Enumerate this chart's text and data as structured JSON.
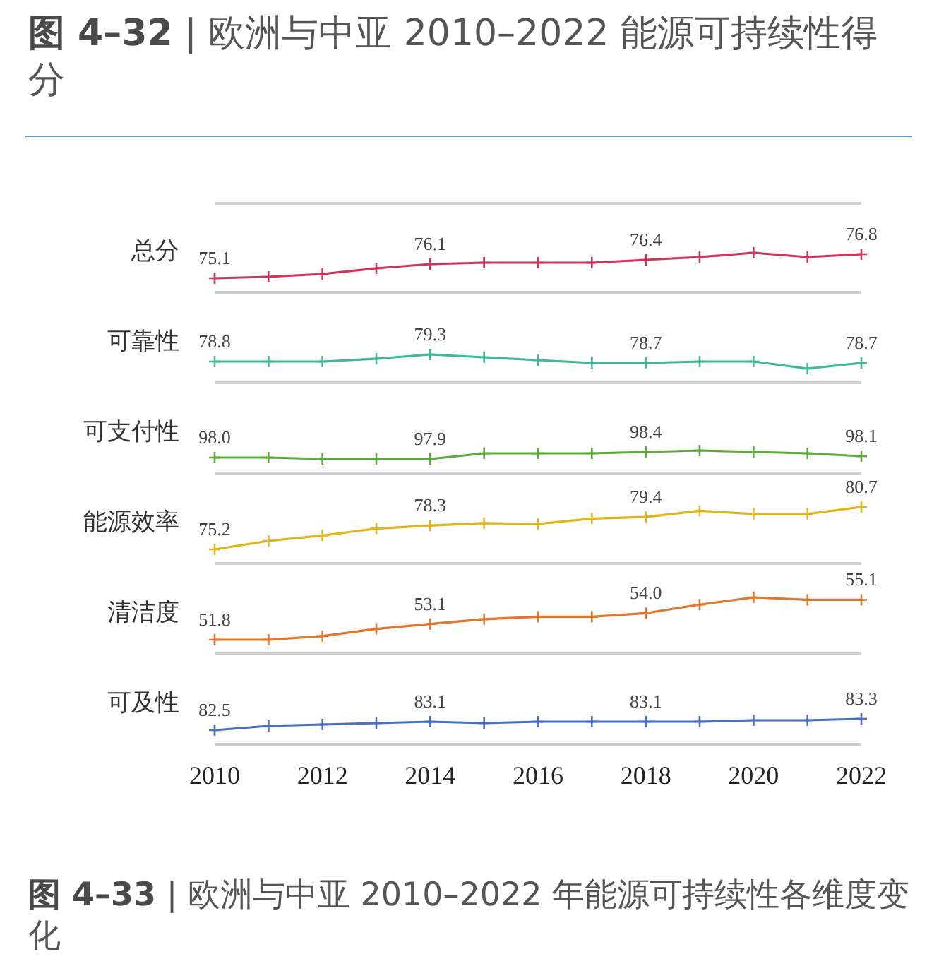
{
  "chart_data": [
    {
      "type": "line",
      "title": "**图 4–32** | 欧洲与中亚 2010–2022 能源可持续性得分",
      "ylabel": "总分",
      "x": [
        2010,
        2011,
        2012,
        2013,
        2014,
        2015,
        2016,
        2017,
        2018,
        2019,
        2020,
        2021,
        2022
      ],
      "values": [
        75.1,
        75.2,
        75.4,
        75.8,
        76.1,
        76.2,
        76.2,
        76.2,
        76.4,
        76.6,
        76.9,
        76.6,
        76.8
      ],
      "color": "#d0345a",
      "value_labels": [
        "75.1",
        null,
        null,
        null,
        "76.1",
        null,
        null,
        null,
        "76.4",
        null,
        null,
        null,
        "76.8"
      ],
      "xlim": [
        2010,
        2022
      ],
      "tick_labels": false,
      "marker": "cross"
    },
    {
      "type": "line",
      "ylabel": "可靠性",
      "x": [
        2010,
        2011,
        2012,
        2013,
        2014,
        2015,
        2016,
        2017,
        2018,
        2019,
        2020,
        2021,
        2022
      ],
      "values": [
        78.8,
        78.8,
        78.8,
        79.0,
        79.3,
        79.1,
        78.9,
        78.7,
        78.7,
        78.8,
        78.8,
        78.3,
        78.7
      ],
      "color": "#3fb89a",
      "value_labels": [
        "78.8",
        null,
        null,
        null,
        "79.3",
        null,
        null,
        null,
        "78.7",
        null,
        null,
        null,
        "78.7"
      ],
      "xlim": [
        2010,
        2022
      ],
      "tick_labels": false,
      "marker": "cross"
    },
    {
      "type": "line",
      "ylabel": "可支付性",
      "x": [
        2010,
        2011,
        2012,
        2013,
        2014,
        2015,
        2016,
        2017,
        2018,
        2019,
        2020,
        2021,
        2022
      ],
      "values": [
        98.0,
        98.0,
        97.9,
        97.9,
        97.9,
        98.3,
        98.3,
        98.3,
        98.4,
        98.5,
        98.4,
        98.3,
        98.1
      ],
      "color": "#5aab3a",
      "value_labels": [
        "98.0",
        null,
        null,
        null,
        "97.9",
        null,
        null,
        null,
        "98.4",
        null,
        null,
        null,
        "98.1"
      ],
      "xlim": [
        2010,
        2022
      ],
      "tick_labels": false,
      "marker": "cross"
    },
    {
      "type": "line",
      "ylabel": "能源效率",
      "x": [
        2010,
        2011,
        2012,
        2013,
        2014,
        2015,
        2016,
        2017,
        2018,
        2019,
        2020,
        2021,
        2022
      ],
      "values": [
        75.2,
        76.3,
        77.0,
        77.9,
        78.3,
        78.6,
        78.5,
        79.2,
        79.4,
        80.2,
        79.8,
        79.8,
        80.7
      ],
      "color": "#e0b51a",
      "value_labels": [
        "75.2",
        null,
        null,
        null,
        "78.3",
        null,
        null,
        null,
        "79.4",
        null,
        null,
        null,
        "80.7"
      ],
      "xlim": [
        2010,
        2022
      ],
      "tick_labels": false,
      "marker": "cross"
    },
    {
      "type": "line",
      "ylabel": "清洁度",
      "x": [
        2010,
        2011,
        2012,
        2013,
        2014,
        2015,
        2016,
        2017,
        2018,
        2019,
        2020,
        2021,
        2022
      ],
      "values": [
        51.8,
        51.8,
        52.1,
        52.7,
        53.1,
        53.5,
        53.7,
        53.7,
        54.0,
        54.7,
        55.3,
        55.1,
        55.1
      ],
      "color": "#e2762a",
      "value_labels": [
        "51.8",
        null,
        null,
        null,
        "53.1",
        null,
        null,
        null,
        "54.0",
        null,
        null,
        null,
        "55.1"
      ],
      "xlim": [
        2010,
        2022
      ],
      "tick_labels": false,
      "marker": "cross"
    },
    {
      "type": "line",
      "ylabel": "可及性",
      "x": [
        2010,
        2011,
        2012,
        2013,
        2014,
        2015,
        2016,
        2017,
        2018,
        2019,
        2020,
        2021,
        2022
      ],
      "values": [
        82.5,
        82.8,
        82.9,
        83.0,
        83.1,
        83.0,
        83.1,
        83.1,
        83.1,
        83.1,
        83.2,
        83.2,
        83.3
      ],
      "color": "#4a6fc0",
      "value_labels": [
        "82.5",
        null,
        null,
        null,
        "83.1",
        null,
        null,
        null,
        "83.1",
        null,
        null,
        null,
        "83.3"
      ],
      "xlim": [
        2010,
        2022
      ],
      "xticks": [
        2010,
        2012,
        2014,
        2016,
        2018,
        2020,
        2022
      ],
      "tick_labels": "x",
      "marker": "cross",
      "annotations": [
        "**图 4–33** | 欧洲与中亚 2010–2022 年能源可持续性各维度变化"
      ]
    }
  ]
}
